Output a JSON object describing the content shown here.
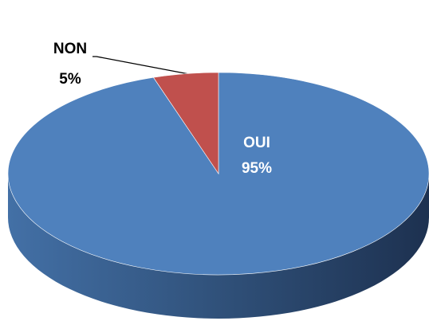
{
  "chart_data": {
    "type": "pie3d",
    "categories": [
      "OUI",
      "NON"
    ],
    "values": [
      95,
      5
    ],
    "value_labels": [
      "95%",
      "5%"
    ],
    "colors": [
      "#4f81bd",
      "#c0504d"
    ]
  }
}
